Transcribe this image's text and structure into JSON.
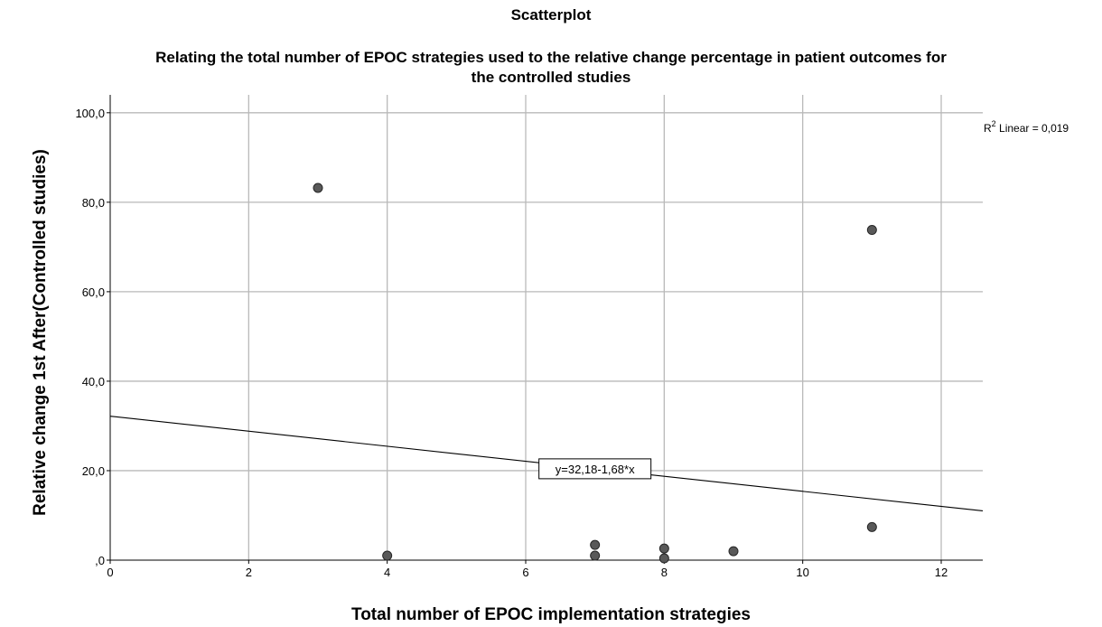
{
  "chart_data": {
    "type": "scatter",
    "title": "Scatterplot",
    "subtitle_lines": [
      "Relating the total number of EPOC strategies used to the relative change percentage in patient outcomes for",
      "the controlled studies"
    ],
    "xlabel": "Total number of EPOC implementation strategies",
    "ylabel": "Relative change 1st After(Controlled studies)",
    "xlim": [
      0,
      12.6
    ],
    "ylim": [
      0,
      104
    ],
    "x_ticks": [
      0,
      2,
      4,
      6,
      8,
      10,
      12
    ],
    "x_tick_labels": [
      "0",
      "2",
      "4",
      "6",
      "8",
      "10",
      "12"
    ],
    "y_ticks": [
      0,
      20,
      40,
      60,
      80,
      100
    ],
    "y_tick_labels": [
      ",0",
      "20,0",
      "40,0",
      "60,0",
      "80,0",
      "100,0"
    ],
    "grid": true,
    "points": [
      {
        "x": 3,
        "y": 83.2
      },
      {
        "x": 4,
        "y": 1.0
      },
      {
        "x": 7,
        "y": 3.4
      },
      {
        "x": 7,
        "y": 1.0
      },
      {
        "x": 8,
        "y": 2.6
      },
      {
        "x": 8,
        "y": 0.4
      },
      {
        "x": 9,
        "y": 2.0
      },
      {
        "x": 11,
        "y": 73.8
      },
      {
        "x": 11,
        "y": 7.4
      }
    ],
    "fit_line": {
      "intercept": 32.18,
      "slope": -1.68,
      "equation_label": "y=32,18-1,68*x",
      "label_x": 7.0
    },
    "r2_label": {
      "prefix": "R",
      "superscript": "2",
      "text": " Linear = 0,019"
    }
  }
}
